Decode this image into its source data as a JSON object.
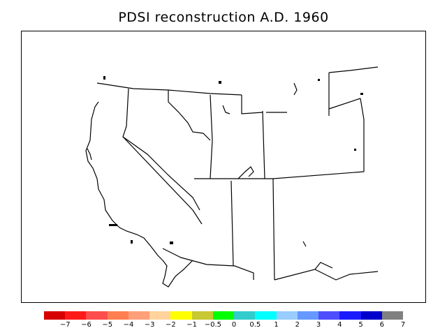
{
  "title": "PDSI reconstruction A.D. 1960",
  "legend": {
    "colors": [
      "#d70000",
      "#ff1a1a",
      "#ff4d4d",
      "#ff7f50",
      "#ffa07a",
      "#ffd39b",
      "#ffff00",
      "#c8c832",
      "#00ff00",
      "#33cccc",
      "#00ffff",
      "#99ccff",
      "#6699ff",
      "#4d4dff",
      "#1a1aff",
      "#0000cc",
      "#808080"
    ],
    "labels": [
      "−7",
      "−6",
      "−5",
      "−4",
      "−3",
      "−2",
      "−1",
      "−0.5",
      "0",
      "0.5",
      "1",
      "2",
      "3",
      "4",
      "5",
      "6",
      "7"
    ]
  }
}
